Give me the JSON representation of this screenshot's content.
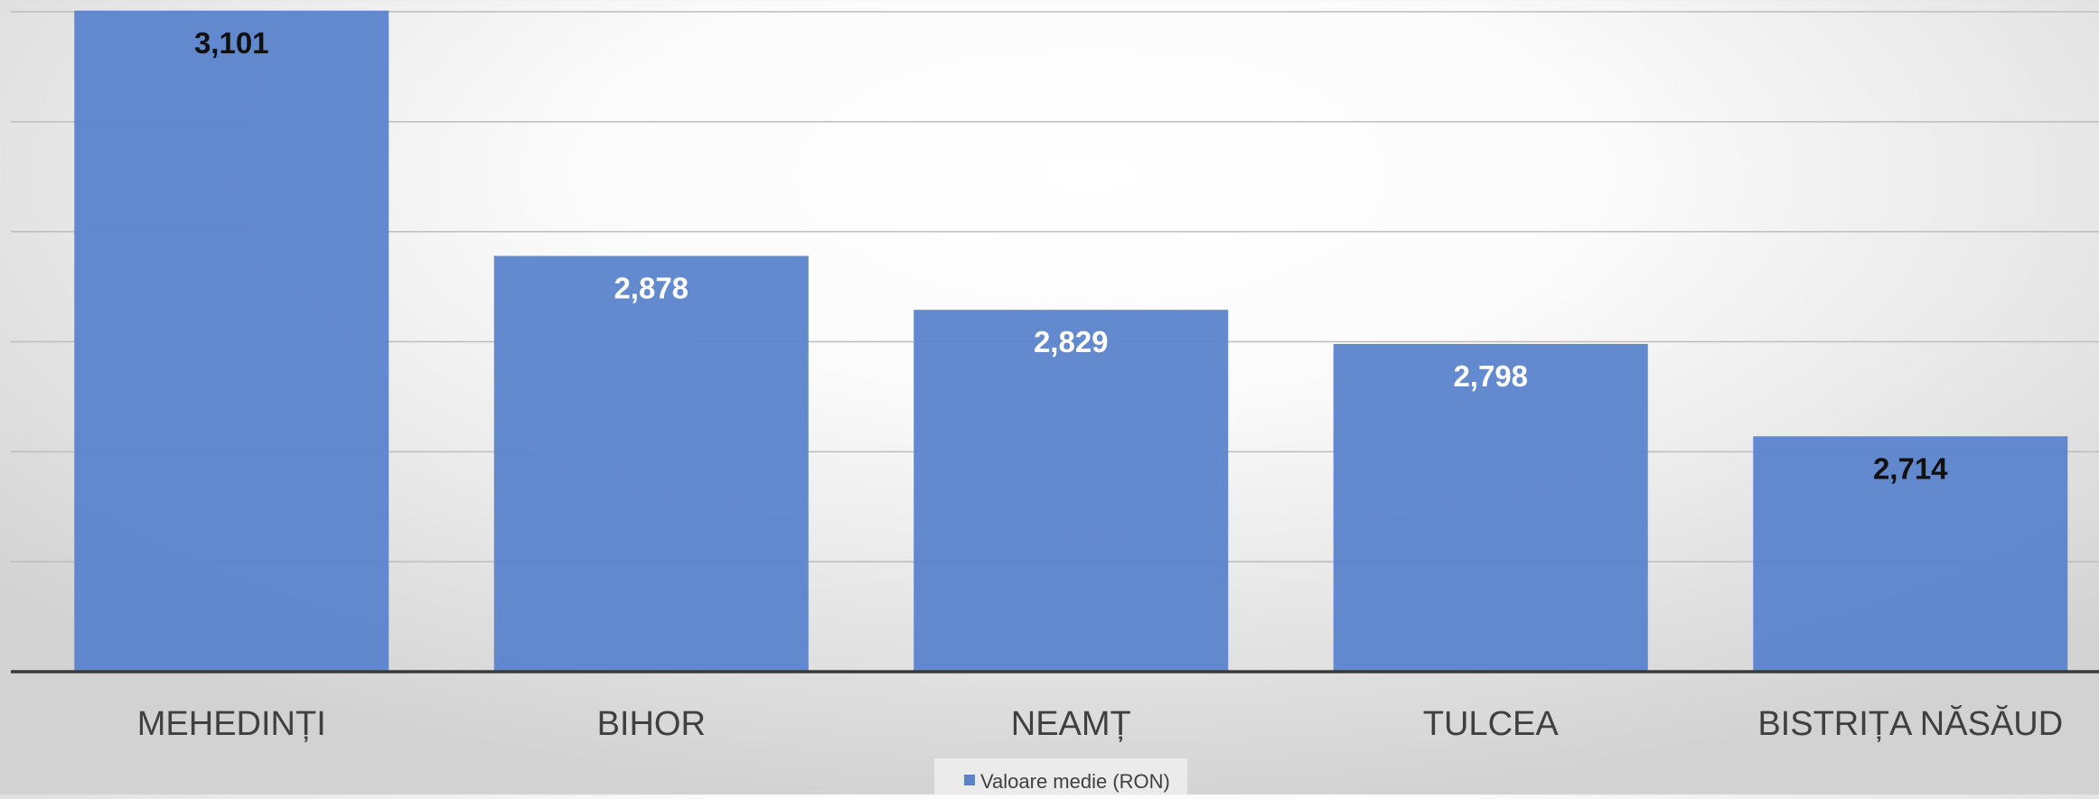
{
  "chart_data": {
    "type": "bar",
    "categories": [
      "MEHEDINȚI",
      "BIHOR",
      "NEAMȚ",
      "TULCEA",
      "BISTRIȚA NĂSĂUD"
    ],
    "series": [
      {
        "name": "Valoare medie (RON)",
        "values": [
          3101,
          2878,
          2829,
          2798,
          2714
        ],
        "data_labels": [
          "3,101",
          "2,878",
          "2,829",
          "2,798",
          "2,714"
        ]
      }
    ],
    "ylim": [
      2500,
      3100
    ],
    "y_gridlines": [
      2500,
      2600,
      2700,
      2800,
      2900,
      3000,
      3100
    ],
    "grid": true,
    "legend_position": "bottom",
    "colors": {
      "bar": "#5b84cc",
      "label_dark": "#111111",
      "label_light": "#ffffff"
    },
    "label_colors": [
      "dark",
      "light",
      "light",
      "light",
      "dark"
    ]
  }
}
